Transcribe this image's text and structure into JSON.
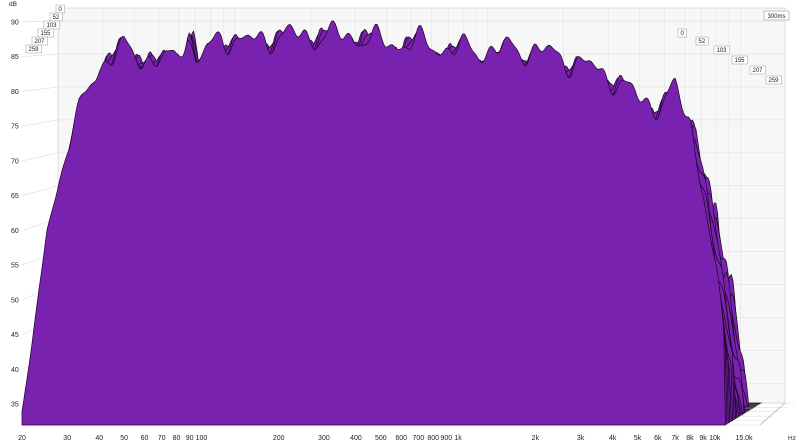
{
  "window_badge": "300ms",
  "chart_data": {
    "type": "waterfall",
    "y_unit": "dB",
    "x_unit": "Hz",
    "ylim": [
      32,
      92
    ],
    "xlim": [
      20,
      15000
    ],
    "x_scale": "log",
    "grid": true,
    "yticks": [
      35,
      40,
      45,
      50,
      55,
      60,
      65,
      70,
      75,
      80,
      85,
      90
    ],
    "xticks": [
      {
        "v": 20,
        "label": "20"
      },
      {
        "v": 30,
        "label": "30"
      },
      {
        "v": 40,
        "label": "40"
      },
      {
        "v": 50,
        "label": "50"
      },
      {
        "v": 60,
        "label": "60"
      },
      {
        "v": 70,
        "label": "70"
      },
      {
        "v": 80,
        "label": "80"
      },
      {
        "v": 90,
        "label": "90"
      },
      {
        "v": 100,
        "label": "100"
      },
      {
        "v": 200,
        "label": "200"
      },
      {
        "v": 300,
        "label": "300"
      },
      {
        "v": 400,
        "label": "400"
      },
      {
        "v": 500,
        "label": "500"
      },
      {
        "v": 600,
        "label": "600"
      },
      {
        "v": 700,
        "label": "700"
      },
      {
        "v": 800,
        "label": "800"
      },
      {
        "v": 900,
        "label": "900"
      },
      {
        "v": 1000,
        "label": "1k"
      },
      {
        "v": 2000,
        "label": "2k"
      },
      {
        "v": 3000,
        "label": "3k"
      },
      {
        "v": 4000,
        "label": "4k"
      },
      {
        "v": 5000,
        "label": "5k"
      },
      {
        "v": 6000,
        "label": "6k"
      },
      {
        "v": 7000,
        "label": "7k"
      },
      {
        "v": 8000,
        "label": "8k"
      },
      {
        "v": 9000,
        "label": "9k"
      },
      {
        "v": 10000,
        "label": "10k"
      },
      {
        "v": 15000,
        "label": "15.0k"
      }
    ],
    "time_slices_ms": [
      "0",
      "52",
      "103",
      "155",
      "207",
      "259"
    ],
    "slice_count": 26,
    "fill_color": "#7a22b0",
    "edge_color": "#1a0522",
    "envelope_front": [
      {
        "x": 20,
        "y": 34
      },
      {
        "x": 22,
        "y": 44
      },
      {
        "x": 25,
        "y": 60
      },
      {
        "x": 30,
        "y": 72
      },
      {
        "x": 35,
        "y": 79
      },
      {
        "x": 40,
        "y": 84
      },
      {
        "x": 50,
        "y": 86
      },
      {
        "x": 60,
        "y": 85
      },
      {
        "x": 70,
        "y": 84
      },
      {
        "x": 80,
        "y": 85
      },
      {
        "x": 88,
        "y": 89
      },
      {
        "x": 95,
        "y": 84
      },
      {
        "x": 120,
        "y": 88
      },
      {
        "x": 150,
        "y": 87
      },
      {
        "x": 200,
        "y": 88
      },
      {
        "x": 300,
        "y": 88
      },
      {
        "x": 400,
        "y": 88
      },
      {
        "x": 500,
        "y": 87
      },
      {
        "x": 700,
        "y": 87
      },
      {
        "x": 1000,
        "y": 86
      },
      {
        "x": 1500,
        "y": 86
      },
      {
        "x": 2000,
        "y": 86
      },
      {
        "x": 3000,
        "y": 84
      },
      {
        "x": 4000,
        "y": 82
      },
      {
        "x": 5000,
        "y": 79
      },
      {
        "x": 6000,
        "y": 78
      },
      {
        "x": 7000,
        "y": 80
      },
      {
        "x": 8000,
        "y": 76
      },
      {
        "x": 9000,
        "y": 66
      },
      {
        "x": 10000,
        "y": 54
      },
      {
        "x": 11000,
        "y": 44
      }
    ]
  }
}
